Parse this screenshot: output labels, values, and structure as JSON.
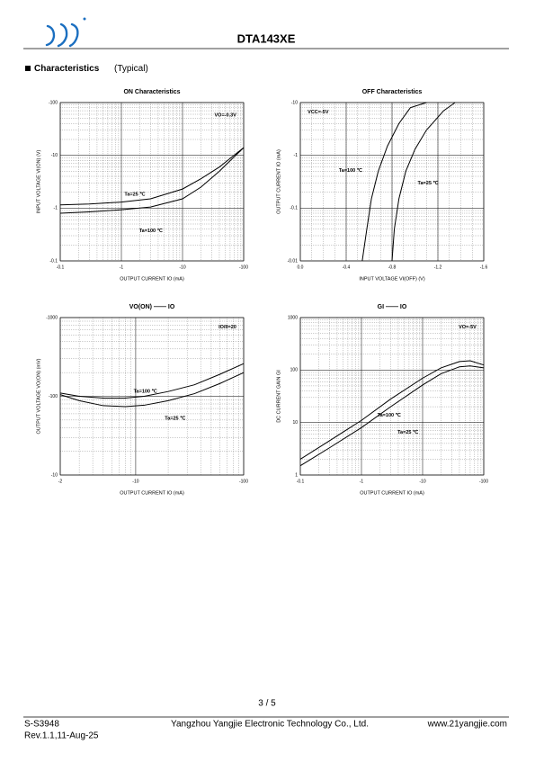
{
  "header": {
    "part": "DTA143XE"
  },
  "section": "Characteristics",
  "section_note": "(Typical)",
  "chart_data": [
    {
      "type": "line",
      "title": "ON Characteristics",
      "x_label": "OUTPUT CURRENT IO (mA)",
      "y_label": "INPUT VOLTAGE VI(ON) (V)",
      "annotation": "VO=-0.3V",
      "x_log": true,
      "y_log": true,
      "grid": true,
      "xlim": [
        -0.1,
        -100
      ],
      "ylim": [
        -0.1,
        -100
      ],
      "xticks": [
        -0.1,
        -1,
        -10,
        -100
      ],
      "yticks": [
        -0.1,
        -1,
        -10,
        -100
      ],
      "series": [
        {
          "name": "Ta=25 ℃",
          "color": "#000000",
          "x": [
            -0.1,
            -0.3,
            -1,
            -3,
            -10,
            -20,
            -40,
            -100
          ],
          "values": [
            -1.15,
            -1.2,
            -1.3,
            -1.5,
            -2.3,
            -3.6,
            -6,
            -14
          ]
        },
        {
          "name": "Ta=100 ℃",
          "color": "#000000",
          "x": [
            -0.1,
            -0.3,
            -1,
            -3,
            -10,
            -20,
            -40,
            -100
          ],
          "values": [
            -0.8,
            -0.85,
            -0.93,
            -1.05,
            -1.5,
            -2.5,
            -5,
            -14
          ]
        }
      ]
    },
    {
      "type": "line",
      "title": "OFF Characteristics",
      "x_label": "INPUT VOLTAGE VI(OFF) (V)",
      "y_label": "OUTPUT CURRENT IO (mA)",
      "annotation": "VCC=-5V",
      "x_log": false,
      "y_log": true,
      "grid": true,
      "xlim": [
        0,
        -1.6
      ],
      "ylim": [
        -0.01,
        -10
      ],
      "xticks": [
        {
          "value": 0,
          "label": "0.0"
        },
        -0.4,
        -0.8,
        -1.2,
        -1.6
      ],
      "yticks": [
        -0.01,
        -0.1,
        -1,
        -10
      ],
      "series": [
        {
          "name": "Ta=100 ℃",
          "color": "#000000",
          "x": [
            -0.54,
            -0.58,
            -0.62,
            -0.68,
            -0.76,
            -0.86,
            -0.96,
            -1.1
          ],
          "values": [
            -0.01,
            -0.04,
            -0.15,
            -0.5,
            -1.5,
            -4,
            -8,
            -10
          ]
        },
        {
          "name": "Ta=25 ℃",
          "color": "#000000",
          "x": [
            -0.8,
            -0.82,
            -0.86,
            -0.92,
            -1.0,
            -1.1,
            -1.25,
            -1.35
          ],
          "values": [
            -0.01,
            -0.04,
            -0.15,
            -0.5,
            -1.3,
            -3,
            -7,
            -10
          ]
        }
      ]
    },
    {
      "type": "line",
      "title": "VO(ON) —— IO",
      "x_label": "OUTPUT CURRENT IO (mA)",
      "y_label": "OUTPUT VOLTAGE VO(ON) (mV)",
      "annotation": "IO/II=20",
      "x_log": true,
      "y_log": true,
      "grid": true,
      "xlim": [
        -2,
        -100
      ],
      "ylim": [
        -10,
        -1000
      ],
      "xticks": [
        -2,
        -10,
        -100
      ],
      "yticks": [
        -10,
        -100,
        -1000
      ],
      "series": [
        {
          "name": "Ta=100 ℃",
          "color": "#000000",
          "x": [
            -2,
            -3,
            -5,
            -8,
            -12,
            -20,
            -35,
            -60,
            -100
          ],
          "values": [
            -110,
            -100,
            -95,
            -95,
            -100,
            -115,
            -140,
            -190,
            -260
          ]
        },
        {
          "name": "Ta=25 ℃",
          "color": "#000000",
          "x": [
            -2,
            -3,
            -5,
            -8,
            -12,
            -20,
            -35,
            -60,
            -100
          ],
          "values": [
            -105,
            -88,
            -76,
            -74,
            -77,
            -88,
            -108,
            -145,
            -200
          ]
        }
      ]
    },
    {
      "type": "line",
      "title": "GI —— IO",
      "x_label": "OUTPUT CURRENT IO (mA)",
      "y_label": "DC CURRENT GAIN GI",
      "annotation": "VO=-5V",
      "x_log": true,
      "y_log": true,
      "grid": true,
      "xlim": [
        -0.1,
        -100
      ],
      "ylim": [
        1,
        1000
      ],
      "xticks": [
        -0.1,
        -1,
        -10,
        -100
      ],
      "yticks": [
        1,
        10,
        100,
        1000
      ],
      "series": [
        {
          "name": "Ta=100 ℃",
          "color": "#000000",
          "x": [
            -0.1,
            -0.3,
            -1,
            -3,
            -10,
            -20,
            -40,
            -60,
            -100
          ],
          "values": [
            2,
            4.5,
            11,
            28,
            70,
            110,
            145,
            150,
            125
          ]
        },
        {
          "name": "Ta=25 ℃",
          "color": "#000000",
          "x": [
            -0.1,
            -0.3,
            -1,
            -3,
            -10,
            -20,
            -40,
            -60,
            -100
          ],
          "values": [
            1.5,
            3.3,
            8,
            20,
            52,
            85,
            115,
            120,
            110
          ]
        }
      ]
    }
  ],
  "footer": {
    "page": "3 / 5",
    "doc": "S-S3948",
    "company": "Yangzhou Yangjie Electronic Technology Co., Ltd.",
    "url": "www.21yangjie.com",
    "rev": "Rev.1.1,11-Aug-25"
  }
}
